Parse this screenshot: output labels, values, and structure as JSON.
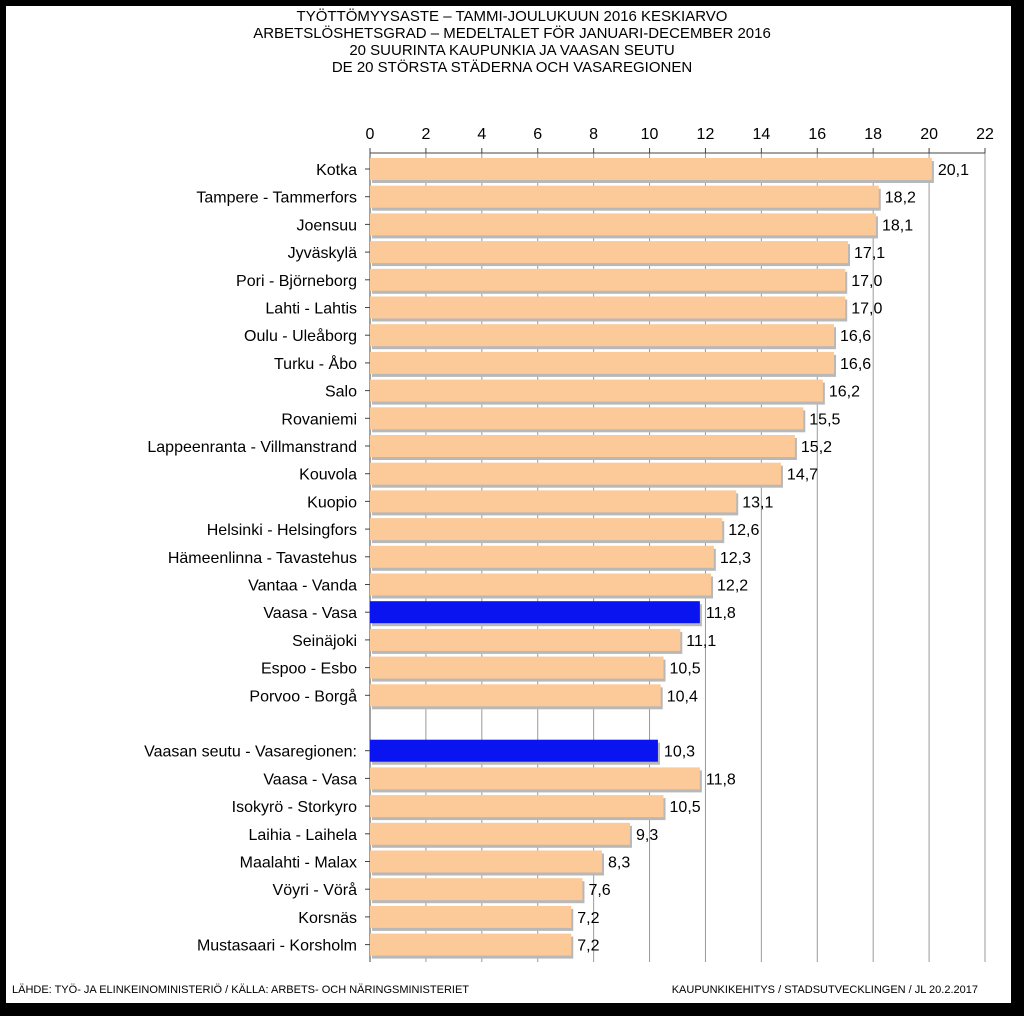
{
  "title_lines": [
    "TYÖTTÖMYYSASTE  – TAMMI-JOULUKUUN  2016 KESKIARVO",
    "ARBETSLÖSHETSGRAD  – MEDELTALET FÖR JANUARI-DECEMBER  2016",
    "20 SUURINTA  KAUPUNKIA  JA VAASAN  SEUTU",
    "DE 20 STÖRSTA  STÄDERNA  OCH VASAREGIONEN"
  ],
  "footer": {
    "source": "LÄHDE: TYÖ- JA ELINKEINOMINISTERIÖ  / KÄLLA: ARBETS- OCH NÄRINGSMINISTERIET",
    "credit": "KAUPUNKIKEHITYS  / STADSUTVECKLINGEN / JL 20.2.2017"
  },
  "colors": {
    "bar": "#fcc998",
    "highlight": "#0a14f0",
    "grid": "#9a9a9a",
    "axis": "#444444"
  },
  "chart_data": {
    "type": "bar",
    "orientation": "horizontal",
    "xlim": [
      0,
      22
    ],
    "x_ticks": [
      "0",
      "2",
      "4",
      "6",
      "8",
      "10",
      "12",
      "14",
      "16",
      "18",
      "20",
      "22"
    ],
    "x_axis_position": "top",
    "grid": true,
    "categories": [
      "Kotka",
      "Tampere - Tammerfors",
      "Joensuu",
      "Jyväskylä",
      "Pori - Björneborg",
      "Lahti - Lahtis",
      "Oulu - Uleåborg",
      "Turku - Åbo",
      "Salo",
      "Rovaniemi",
      "Lappeenranta - Villmanstrand",
      "Kouvola",
      "Kuopio",
      "Helsinki - Helsingfors",
      "Hämeenlinna - Tavastehus",
      "Vantaa - Vanda",
      "Vaasa - Vasa",
      "Seinäjoki",
      "Espoo - Esbo",
      "Porvoo - Borgå",
      "",
      "Vaasan seutu - Vasaregionen:",
      "Vaasa - Vasa",
      "Isokyrö - Storkyro",
      "Laihia - Laihela",
      "Maalahti - Malax",
      "Vöyri - Vörå",
      "Korsnäs",
      "Mustasaari - Korsholm"
    ],
    "values": [
      20.1,
      18.2,
      18.1,
      17.1,
      17.0,
      17.0,
      16.6,
      16.6,
      16.2,
      15.5,
      15.2,
      14.7,
      13.1,
      12.6,
      12.3,
      12.2,
      11.8,
      11.1,
      10.5,
      10.4,
      null,
      10.3,
      11.8,
      10.5,
      9.3,
      8.3,
      7.6,
      7.2,
      7.2
    ],
    "value_labels": [
      "20,1",
      "18,2",
      "18,1",
      "17,1",
      "17,0",
      "17,0",
      "16,6",
      "16,6",
      "16,2",
      "15,5",
      "15,2",
      "14,7",
      "13,1",
      "12,6",
      "12,3",
      "12,2",
      "11,8",
      "11,1",
      "10,5",
      "10,4",
      "",
      "10,3",
      "11,8",
      "10,5",
      "9,3",
      "8,3",
      "7,6",
      "7,2",
      "7,2"
    ],
    "highlighted": [
      16,
      21
    ]
  }
}
